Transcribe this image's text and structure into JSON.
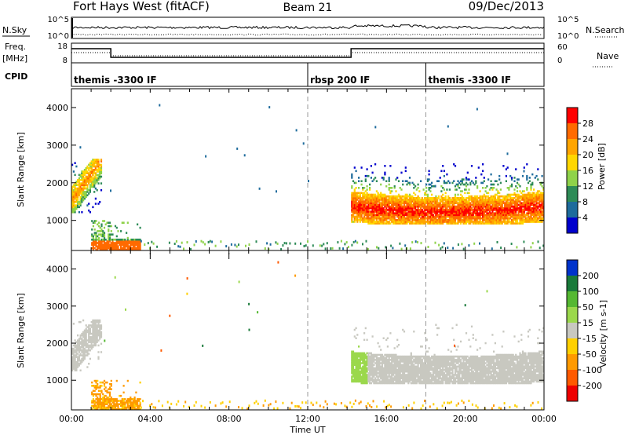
{
  "header": {
    "station": "Fort Hays West (fitACF)",
    "beam": "Beam 21",
    "date": "09/Dec/2013"
  },
  "top_panels": {
    "noise": {
      "left_label": "N.Sky",
      "left_ticks": [
        "10^5",
        "10^0"
      ],
      "right_label": "N.Search",
      "right_ticks": [
        "10^5",
        "10^0"
      ]
    },
    "freq": {
      "left_label_1": "Freq.",
      "left_label_2": "[MHz]",
      "left_ticks": [
        "18",
        "8"
      ],
      "right_label": "Nave",
      "right_ticks": [
        "60",
        "0"
      ]
    },
    "cpid": {
      "label": "CPID",
      "segments": [
        {
          "start_hour": 0,
          "end_hour": 12,
          "text": "themis -3300 IF"
        },
        {
          "start_hour": 12,
          "end_hour": 18,
          "text": "rbsp 200 IF"
        },
        {
          "start_hour": 18,
          "end_hour": 24,
          "text": "themis -3300 IF"
        }
      ]
    }
  },
  "chart_data": [
    {
      "type": "heatmap",
      "title": "Power",
      "ylabel": "Slant Range [km]",
      "xlim_hours": [
        0,
        24
      ],
      "ylim": [
        200,
        4500
      ],
      "y_ticks": [
        1000,
        2000,
        3000,
        4000
      ],
      "colorbar": {
        "label": "Power [dB]",
        "ticks": [
          "28",
          "24",
          "20",
          "16",
          "12",
          "8",
          "4"
        ],
        "colors": [
          "#ff0000",
          "#ff6a00",
          "#ffa500",
          "#ffd700",
          "#8fd24a",
          "#2e8b57",
          "#1e6b9c",
          "#0000cd"
        ]
      },
      "regions": [
        {
          "hours": [
            0.0,
            1.5
          ],
          "range_km": [
            1200,
            2600
          ],
          "typical_db": 14
        },
        {
          "hours": [
            1.0,
            3.5
          ],
          "range_km": [
            200,
            1000
          ],
          "typical_db": 24
        },
        {
          "hours": [
            14.2,
            24.0
          ],
          "range_km": [
            900,
            2500
          ],
          "typical_db": 20
        }
      ]
    },
    {
      "type": "heatmap",
      "title": "Velocity",
      "ylabel": "Slant Range [km]",
      "xlabel": "Time UT",
      "x_ticks": [
        "00:00",
        "04:00",
        "08:00",
        "12:00",
        "16:00",
        "20:00",
        "00:00"
      ],
      "xlim_hours": [
        0,
        24
      ],
      "ylim": [
        200,
        4500
      ],
      "y_ticks": [
        1000,
        2000,
        3000,
        4000
      ],
      "colorbar": {
        "label": "Velocity [m s-1]",
        "ticks": [
          "200",
          "100",
          "50",
          "15",
          "-15",
          "-50",
          "-100",
          "-200"
        ],
        "colors": [
          "#0033cc",
          "#1a7a3a",
          "#55b832",
          "#9bd84c",
          "#c8c8c0",
          "#ffd000",
          "#ff9a00",
          "#ff5a00",
          "#ee0000"
        ]
      },
      "regions": [
        {
          "hours": [
            0.0,
            1.5
          ],
          "range_km": [
            1200,
            2600
          ],
          "typical_ms": 0
        },
        {
          "hours": [
            1.0,
            3.5
          ],
          "range_km": [
            200,
            1000
          ],
          "typical_ms": -60
        },
        {
          "hours": [
            14.2,
            24.0
          ],
          "range_km": [
            900,
            2500
          ],
          "typical_ms": 0
        }
      ]
    }
  ]
}
